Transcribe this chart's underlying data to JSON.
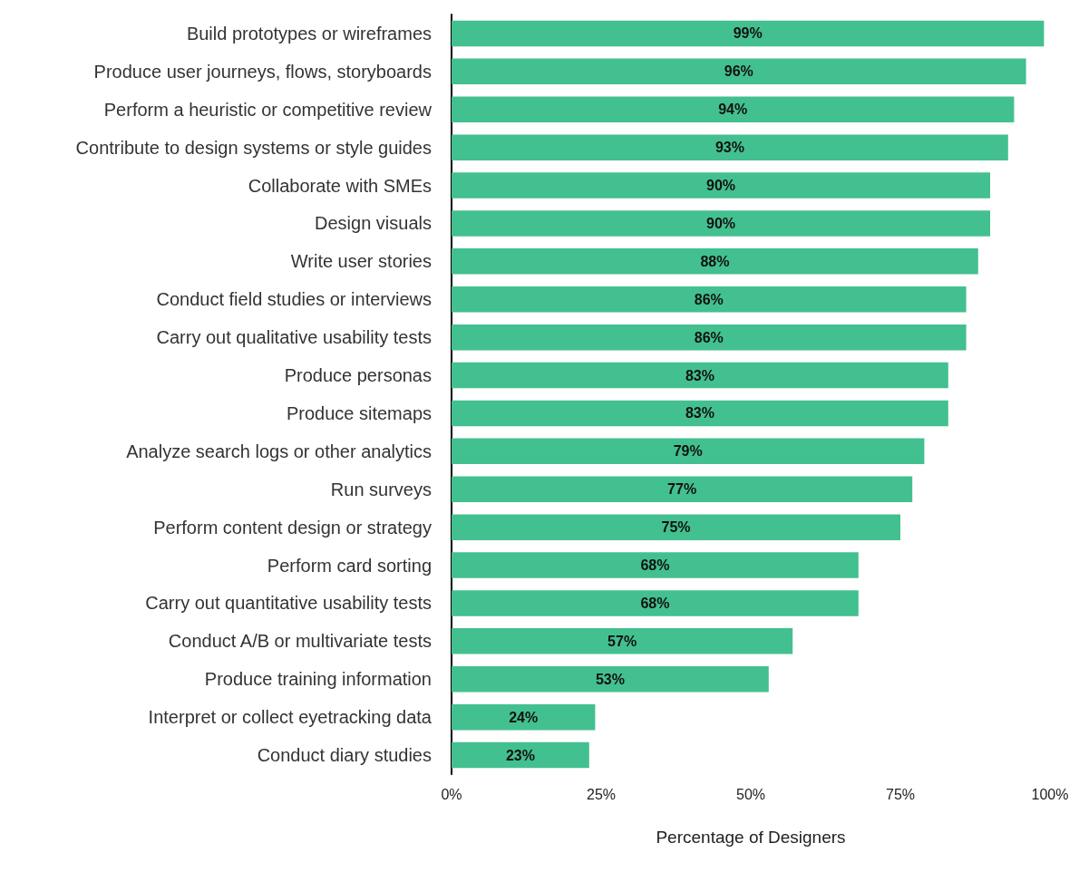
{
  "chart_data": {
    "type": "bar",
    "orientation": "horizontal",
    "xlabel": "Percentage of Designers",
    "categories": [
      "Build prototypes or wireframes",
      "Produce user journeys, flows, storyboards",
      "Perform a heuristic or competitive review",
      "Contribute to design systems or style guides",
      "Collaborate with SMEs",
      "Design visuals",
      "Write user stories",
      "Conduct field studies or interviews",
      "Carry out qualitative usability tests",
      "Produce personas",
      "Produce sitemaps",
      "Analyze search logs or other analytics",
      "Run surveys",
      "Perform content design or strategy",
      "Perform card sorting",
      "Carry out quantitative usability tests",
      "Conduct A/B or multivariate tests",
      "Produce training information",
      "Interpret or collect eyetracking data",
      "Conduct diary studies"
    ],
    "values": [
      99,
      96,
      94,
      93,
      90,
      90,
      88,
      86,
      86,
      83,
      83,
      79,
      77,
      75,
      68,
      68,
      57,
      53,
      24,
      23
    ],
    "value_labels": [
      "99%",
      "96%",
      "94%",
      "93%",
      "90%",
      "90%",
      "88%",
      "86%",
      "86%",
      "83%",
      "83%",
      "79%",
      "77%",
      "75%",
      "68%",
      "68%",
      "57%",
      "53%",
      "24%",
      "23%"
    ],
    "color": "#43c08f",
    "xlim": [
      0,
      100
    ],
    "xticks": [
      {
        "value": 0,
        "label": "0%"
      },
      {
        "value": 25,
        "label": "25%"
      },
      {
        "value": 50,
        "label": "50%"
      },
      {
        "value": 75,
        "label": "75%"
      },
      {
        "value": 100,
        "label": "100%"
      }
    ],
    "grid": false
  }
}
